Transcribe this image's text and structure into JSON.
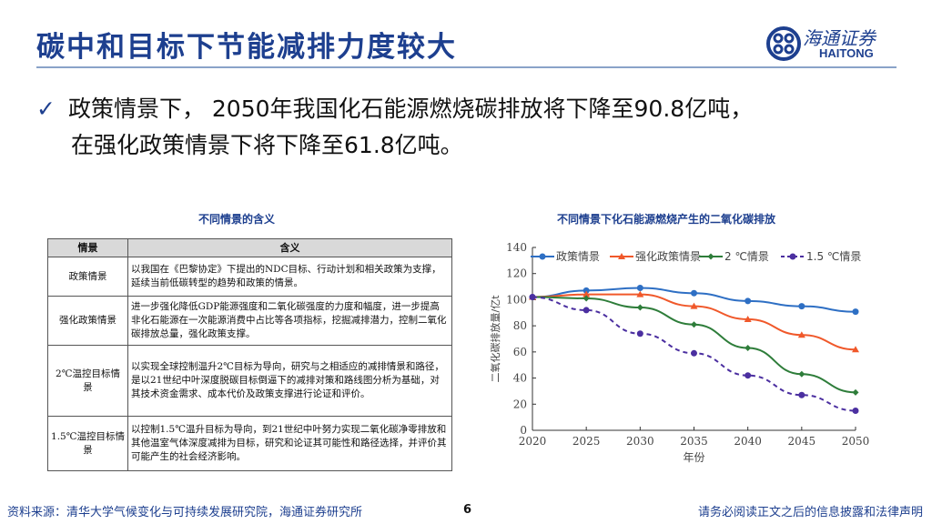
{
  "header": {
    "title": "碳中和目标下节能减排力度较大",
    "logo_cn": "海通证券",
    "logo_en": "HAITONG",
    "brand_color": "#1d3f8f"
  },
  "bullet": {
    "icon": "check-icon",
    "line1": "政策情景下， 2050年我国化石能源燃烧碳排放将下降至90.8亿吨，",
    "line2": "在强化政策情景下将下降至61.8亿吨。"
  },
  "table": {
    "title": "不同情景的含义",
    "headers": [
      "情景",
      "含义"
    ],
    "rows": [
      {
        "scenario": "政策情景",
        "meaning": "以我国在《巴黎协定》下提出的NDC目标、行动计划和相关政策为支撑，延续当前低碳转型的趋势和政策的情景。"
      },
      {
        "scenario": "强化政策情景",
        "meaning": "进一步强化降低GDP能源强度和二氧化碳强度的力度和幅度，进一步提高非化石能源在一次能源消费中占比等各项指标，挖掘减排潜力，控制二氧化碳排放总量，强化政策支撑。"
      },
      {
        "scenario": "2℃温控目标情景",
        "meaning": "以实现全球控制温升2℃目标为导向，研究与之相适应的减排情景和路径，是以21世纪中叶深度脱碳目标倒逼下的减排对策和路线图分析为基础，对其技术资金需求、成本代价及政策支撑进行论证和评价。"
      },
      {
        "scenario": "1.5℃温控目标情景",
        "meaning": "以控制1.5℃温升目标为导向，到21世纪中叶努力实现二氧化碳净零排放和其他温室气体深度减排为目标，研究和论证其可能性和路径选择，并评价其可能产生的社会经济影响。"
      }
    ]
  },
  "chart_data": {
    "type": "line",
    "title": "不同情景下化石能源燃烧产生的二氧化碳排放",
    "xlabel": "年份",
    "ylabel": "二氧化碳排放量/亿t",
    "x": [
      2020,
      2025,
      2030,
      2035,
      2040,
      2045,
      2050
    ],
    "ylim": [
      0,
      140
    ],
    "yticks": [
      0,
      20,
      40,
      60,
      80,
      100,
      120,
      140
    ],
    "grid": false,
    "legend": "top",
    "series": [
      {
        "name": "政策情景",
        "color": "#2e6fc4",
        "marker": "circle",
        "dash": false,
        "values": [
          102,
          107,
          109,
          105,
          99,
          95,
          90.8
        ]
      },
      {
        "name": "强化政策情景",
        "color": "#f0582a",
        "marker": "triangle",
        "dash": false,
        "values": [
          102,
          104,
          104,
          95,
          85,
          73,
          61.8
        ]
      },
      {
        "name": "2 ℃情景",
        "color": "#2e7d3a",
        "marker": "diamond",
        "dash": false,
        "values": [
          102,
          101,
          94,
          81,
          63,
          43,
          29
        ]
      },
      {
        "name": "1.5 ℃情景",
        "color": "#4b2fa0",
        "marker": "circle",
        "dash": true,
        "values": [
          102,
          92,
          74,
          59,
          42,
          27,
          15
        ]
      }
    ]
  },
  "footer": {
    "source": "资料来源：清华大学气候变化与可持续发展研究院，海通证券研究所",
    "page": "6",
    "disclaimer": "请务必阅读正文之后的信息披露和法律声明"
  }
}
